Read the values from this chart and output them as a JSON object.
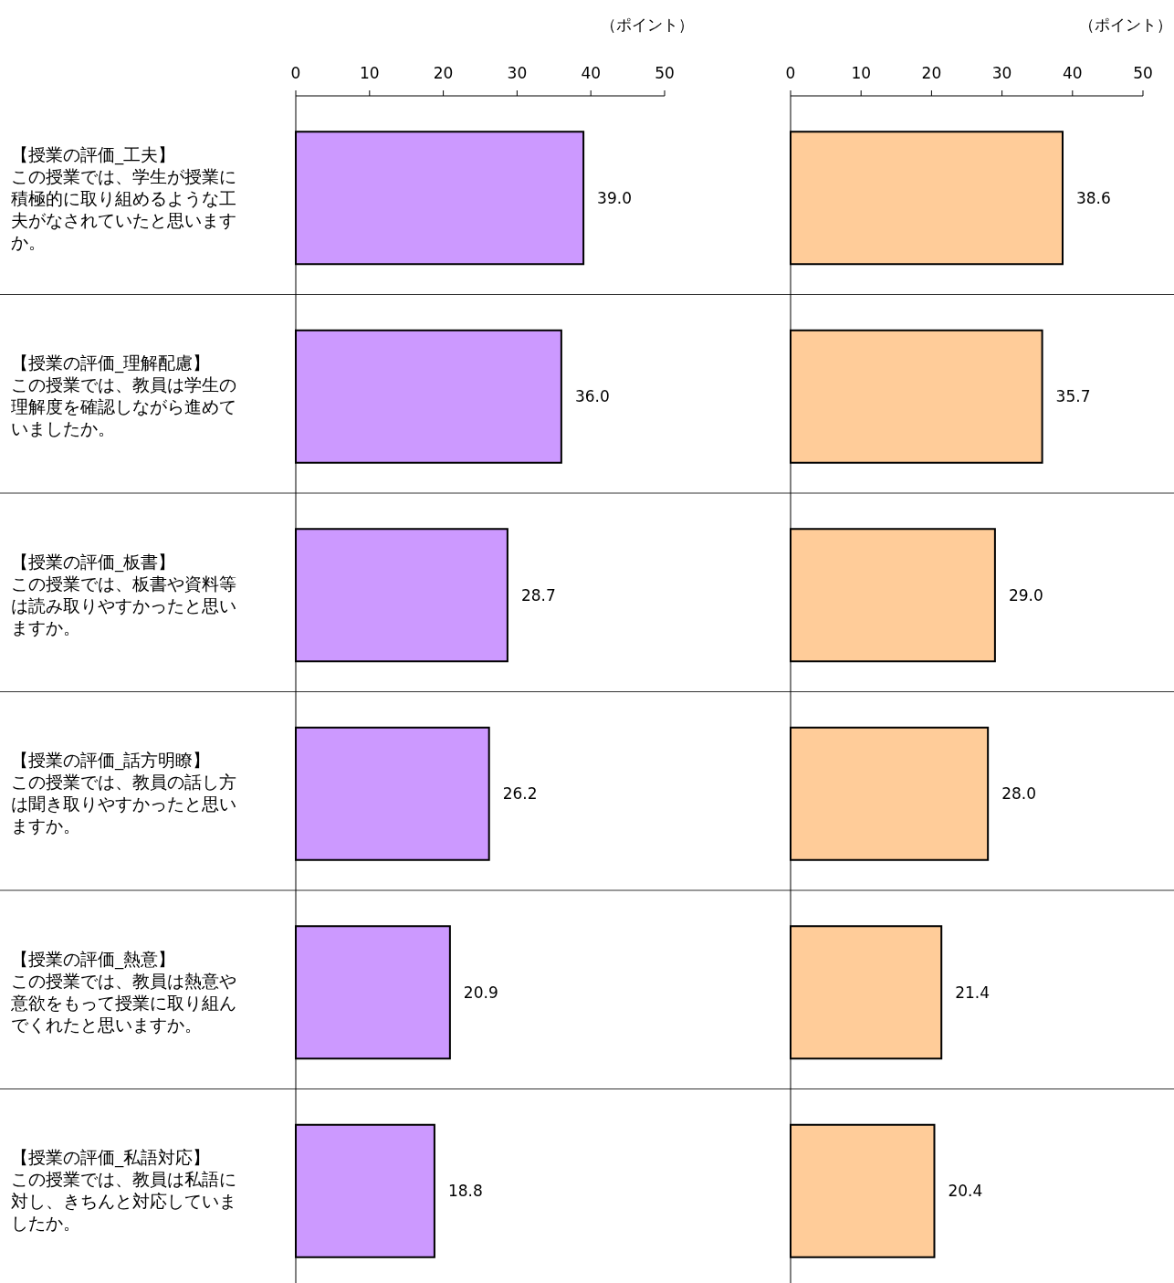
{
  "chart_data": [
    {
      "type": "bar",
      "orientation": "horizontal",
      "xlabel": "（ポイント）",
      "categories": [
        "【授業の評価_工夫】この授業では、学生が授業に積極的に取り組めるような工夫がなされていたと思いますか。",
        "【授業の評価_理解配慮】この授業では、教員は学生の理解度を確認しながら進めていましたか。",
        "【授業の評価_板書】この授業では、板書や資料等は読み取りやすかったと思いますか。",
        "【授業の評価_話方明瞭】この授業では、教員の話し方は聞き取りやすかったと思いますか。",
        "【授業の評価_熱意】この授業では、教員は熱意や意欲をもって授業に取り組んでくれたと思いますか。",
        "【授業の評価_私語対応】この授業では、教員は私語に対し、きちんと対応していましたか。"
      ],
      "values": [
        39.0,
        36.0,
        28.7,
        26.2,
        20.9,
        18.8
      ],
      "value_labels": [
        "39.0",
        "36.0",
        "28.7",
        "26.2",
        "20.9",
        "18.8"
      ],
      "color": "#cc99ff",
      "xlim": [
        0,
        50
      ],
      "xticks": [
        0,
        10,
        20,
        30,
        40,
        50
      ]
    },
    {
      "type": "bar",
      "orientation": "horizontal",
      "xlabel": "（ポイント）",
      "categories": [
        null,
        null,
        null,
        null,
        null,
        null
      ],
      "values": [
        38.6,
        35.7,
        29.0,
        28.0,
        21.4,
        20.4
      ],
      "value_labels": [
        "38.6",
        "35.7",
        "29.0",
        "28.0",
        "21.4",
        "20.4"
      ],
      "color": "#ffcc99",
      "xlim": [
        0,
        50
      ],
      "xticks": [
        0,
        10,
        20,
        30,
        40,
        50
      ],
      "tick_labels": "x"
    }
  ]
}
